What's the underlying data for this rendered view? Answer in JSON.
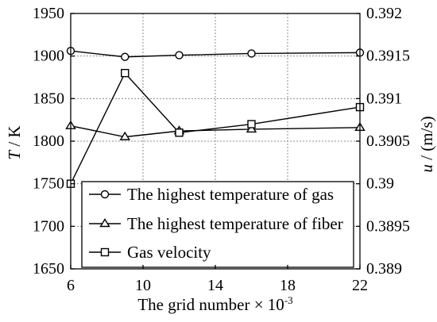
{
  "colors": {
    "ink": "#000000",
    "grid": "#8c8c8c",
    "background": "#ffffff"
  },
  "chart_data": {
    "type": "line",
    "x": [
      6,
      9,
      12,
      16,
      22
    ],
    "xlim": [
      6,
      22
    ],
    "ylim": [
      1650,
      1950
    ],
    "y2lim": [
      0.389,
      0.392
    ],
    "xticks": [
      6,
      10,
      14,
      18,
      22
    ],
    "xtick_labels": [
      "6",
      "10",
      "14",
      "18",
      "22"
    ],
    "yticks": [
      1650,
      1700,
      1750,
      1800,
      1850,
      1900,
      1950
    ],
    "ytick_labels": [
      "1650",
      "1700",
      "1750",
      "1800",
      "1850",
      "1900",
      "1950"
    ],
    "y2ticks": [
      0.389,
      0.3895,
      0.39,
      0.3905,
      0.391,
      0.3915,
      0.392
    ],
    "y2tick_labels": [
      "0.389",
      "0.3895",
      "0.39",
      "0.3905",
      "0.391",
      "0.3915",
      "0.392"
    ],
    "xlabel": {
      "text": "The grid number × 10",
      "exponent": "-3"
    },
    "ylabel": {
      "symbol": "T",
      "unit": " / K"
    },
    "y2label": {
      "symbol": "u",
      "unit": " / (m/s)"
    },
    "grid": true,
    "legend_position": "bottom-left",
    "series": [
      {
        "name": "The highest temperature of gas",
        "axis": "left",
        "marker": "circle",
        "values": [
          1906,
          1899,
          1901,
          1903,
          1904
        ]
      },
      {
        "name": "The highest temperature of fiber",
        "axis": "left",
        "marker": "triangle",
        "values": [
          1818,
          1805,
          1812,
          1814,
          1816
        ]
      },
      {
        "name": "Gas velocity",
        "axis": "right",
        "marker": "square",
        "values": [
          0.39,
          0.3913,
          0.3906,
          0.3907,
          0.3909
        ]
      }
    ]
  }
}
